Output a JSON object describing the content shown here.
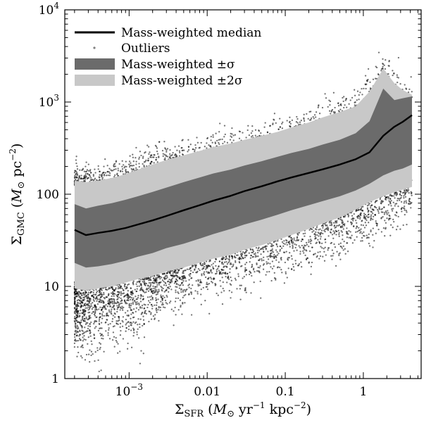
{
  "chart_data": {
    "type": "line",
    "xlabel": "Σ_SFR (M⊙ yr⁻¹ kpc⁻²)",
    "ylabel": "Σ_GMC (M⊙ pc⁻²)",
    "xscale": "log",
    "yscale": "log",
    "xlim": [
      0.00015,
      5.5
    ],
    "ylim": [
      1,
      10000
    ],
    "grid": false,
    "legend_position": "top-left",
    "x_ticks": [
      {
        "value": 0.001,
        "base": "10",
        "exp": "−3"
      },
      {
        "value": 0.01,
        "label": "0.01"
      },
      {
        "value": 0.1,
        "label": "0.1"
      },
      {
        "value": 1,
        "label": "1"
      }
    ],
    "y_ticks": [
      {
        "value": 1,
        "label": "1"
      },
      {
        "value": 10,
        "label": "10"
      },
      {
        "value": 100,
        "label": "100"
      },
      {
        "value": 1000,
        "base": "10",
        "exp": "3"
      },
      {
        "value": 10000,
        "base": "10",
        "exp": "4"
      }
    ],
    "x": [
      0.0002,
      0.00028,
      0.0004,
      0.0006,
      0.0009,
      0.0013,
      0.002,
      0.003,
      0.005,
      0.008,
      0.012,
      0.02,
      0.03,
      0.05,
      0.08,
      0.12,
      0.2,
      0.3,
      0.5,
      0.8,
      1.2,
      1.8,
      2.5,
      3.2,
      4.2
    ],
    "series": [
      {
        "name": "Mass-weighted median",
        "kind": "line",
        "values": [
          41,
          36,
          38,
          40,
          43,
          47,
          52,
          58,
          67,
          76,
          85,
          96,
          108,
          122,
          138,
          152,
          170,
          186,
          210,
          240,
          285,
          430,
          540,
          610,
          720
        ]
      },
      {
        "name": "Mass-weighted ±σ",
        "kind": "band",
        "lower": [
          18,
          16,
          16.5,
          17.5,
          19,
          21,
          23,
          26,
          29,
          33,
          37,
          42,
          47,
          53,
          60,
          67,
          76,
          84,
          95,
          110,
          130,
          160,
          180,
          190,
          210
        ],
        "upper": [
          78,
          70,
          75,
          80,
          87,
          95,
          106,
          118,
          135,
          152,
          168,
          185,
          205,
          228,
          255,
          280,
          310,
          345,
          390,
          460,
          620,
          1400,
          1050,
          1100,
          1150
        ]
      },
      {
        "name": "Mass-weighted ±2σ",
        "kind": "band",
        "lower": [
          9.5,
          9,
          9.5,
          10,
          11,
          12,
          13,
          14.5,
          16,
          18,
          20,
          22,
          25,
          28,
          32,
          36,
          42,
          48,
          56,
          68,
          82,
          95,
          105,
          112,
          120
        ],
        "upper": [
          140,
          135,
          140,
          150,
          165,
          185,
          210,
          235,
          265,
          295,
          325,
          355,
          390,
          430,
          475,
          530,
          600,
          680,
          780,
          900,
          1300,
          2300,
          1600,
          1350,
          1200
        ]
      },
      {
        "name": "Outliers",
        "kind": "scatter",
        "description": "dense cloud of individual outlier points below and above the ±2σ band"
      }
    ]
  },
  "legend": {
    "items": [
      {
        "label": "Mass-weighted median",
        "swatch": "line",
        "color": "#000000"
      },
      {
        "label": "Outliers",
        "swatch": "dot",
        "color": "#808080"
      },
      {
        "label": "Mass-weighted ±σ",
        "swatch": "patch",
        "color": "#6b6b6b"
      },
      {
        "label": "Mass-weighted ±2σ",
        "swatch": "patch",
        "color": "#c8c8c8"
      }
    ]
  },
  "colors": {
    "median": "#000000",
    "band1": "#6b6b6b",
    "band2": "#c8c8c8",
    "outliers": "#000000"
  }
}
